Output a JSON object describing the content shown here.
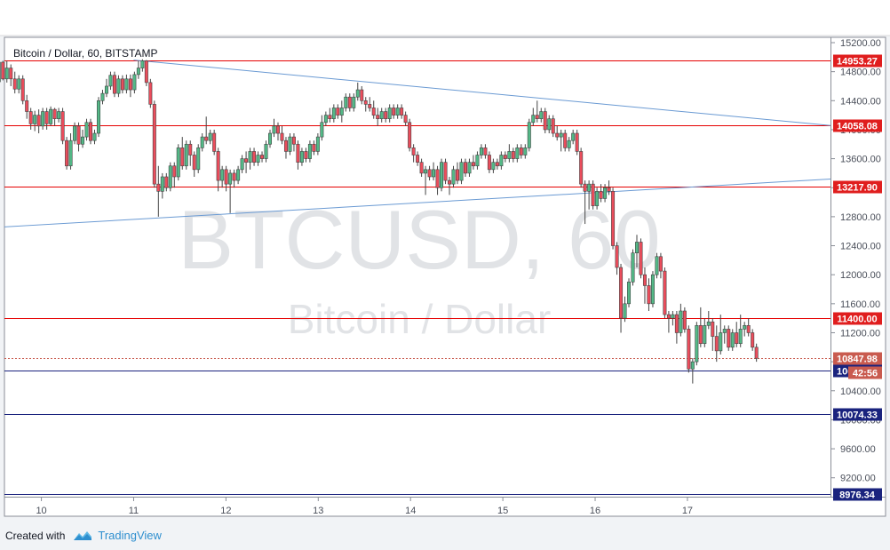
{
  "watermark": {
    "symbol": "BTCUSD, 60",
    "name": "Bitcoin / Dollar"
  },
  "footer": {
    "created_with": "Created with",
    "brand": "TradingView"
  },
  "colors": {
    "up": "#53b987",
    "down": "#eb4d5c",
    "wick": "#444444",
    "resistance": "#e60000",
    "support": "#1a237e",
    "trendline": "#6a9ad3",
    "last_price": "#c95b4f",
    "price_tag_bg": "#e01e1e"
  },
  "chart_data": {
    "type": "candlestick",
    "title": "Bitcoin / Dollar, 60, BITSTAMP",
    "ylim": [
      8976,
      15200
    ],
    "xlim": [
      9.6,
      18.55
    ],
    "y_ticks": [
      15200,
      14800,
      14400,
      14000,
      13600,
      13200,
      12800,
      12400,
      12000,
      11600,
      11200,
      10800,
      10400,
      10000,
      9600,
      9200
    ],
    "x_ticks": [
      "10",
      "11",
      "12",
      "13",
      "14",
      "15",
      "16",
      "17"
    ],
    "horizontal_levels": [
      {
        "value": 14953.27,
        "label": "14953.27",
        "kind": "resistance"
      },
      {
        "value": 14058.08,
        "label": "14058.08",
        "kind": "resistance"
      },
      {
        "value": 13217.9,
        "label": "13217.90",
        "kind": "resistance"
      },
      {
        "value": 11400.0,
        "label": "11400.00",
        "kind": "resistance"
      },
      {
        "value": 10680.67,
        "label": "10680.67",
        "kind": "support"
      },
      {
        "value": 10074.33,
        "label": "10074.33",
        "kind": "support"
      },
      {
        "value": 8976.34,
        "label": "8976.34",
        "kind": "support"
      }
    ],
    "last_price": {
      "value": 10847.98,
      "label": "10847.98",
      "countdown": "42:56"
    },
    "trendlines": [
      {
        "x1": 11.0,
        "y1": 14960,
        "x2": 18.55,
        "y2": 14058
      },
      {
        "x1": 9.6,
        "y1": 12660,
        "x2": 18.55,
        "y2": 13320
      }
    ],
    "candles": [
      [
        14660,
        14930,
        14650,
        14950
      ],
      [
        14930,
        14700,
        14680,
        14950
      ],
      [
        14700,
        14850,
        14650,
        14950
      ],
      [
        14850,
        14700,
        14600,
        14900
      ],
      [
        14700,
        14560,
        14500,
        14800
      ],
      [
        14560,
        14700,
        14500,
        14750
      ],
      [
        14700,
        14400,
        14350,
        14750
      ],
      [
        14400,
        14250,
        14150,
        14480
      ],
      [
        14250,
        14080,
        14000,
        14300
      ],
      [
        14080,
        14200,
        13980,
        14260
      ],
      [
        14200,
        14050,
        13950,
        14280
      ],
      [
        14050,
        14250,
        14000,
        14300
      ],
      [
        14250,
        14080,
        14000,
        14300
      ],
      [
        14080,
        14280,
        14050,
        14320
      ],
      [
        14280,
        14150,
        14050,
        14300
      ],
      [
        14150,
        14250,
        14100,
        14300
      ],
      [
        14250,
        13850,
        13800,
        14300
      ],
      [
        13850,
        13500,
        13450,
        13900
      ],
      [
        13500,
        13850,
        13450,
        13950
      ],
      [
        13850,
        14050,
        13800,
        14100
      ],
      [
        14050,
        13800,
        13700,
        14100
      ],
      [
        13800,
        13900,
        13750,
        14000
      ],
      [
        13900,
        14100,
        13850,
        14150
      ],
      [
        14100,
        13850,
        13800,
        14150
      ],
      [
        13850,
        13950,
        13800,
        14000
      ],
      [
        13950,
        14400,
        13900,
        14450
      ],
      [
        14400,
        14500,
        14350,
        14550
      ],
      [
        14500,
        14600,
        14450,
        14700
      ],
      [
        14600,
        14750,
        14550,
        14800
      ],
      [
        14750,
        14500,
        14450,
        14800
      ],
      [
        14500,
        14700,
        14450,
        14750
      ],
      [
        14700,
        14550,
        14500,
        14750
      ],
      [
        14550,
        14700,
        14500,
        14760
      ],
      [
        14700,
        14550,
        14450,
        14760
      ],
      [
        14550,
        14760,
        14500,
        14800
      ],
      [
        14760,
        14850,
        14700,
        14950
      ],
      [
        14850,
        14950,
        14800,
        14970
      ],
      [
        14950,
        14650,
        14600,
        14960
      ],
      [
        14650,
        14350,
        14300,
        14700
      ],
      [
        14350,
        13250,
        13200,
        14400
      ],
      [
        13250,
        13150,
        12800,
        13500
      ],
      [
        13150,
        13350,
        13050,
        13400
      ],
      [
        13350,
        13200,
        13150,
        13400
      ],
      [
        13200,
        13500,
        13150,
        13550
      ],
      [
        13500,
        13350,
        13200,
        13550
      ],
      [
        13350,
        13750,
        13300,
        13800
      ],
      [
        13750,
        13500,
        13450,
        13900
      ],
      [
        13500,
        13800,
        13450,
        13850
      ],
      [
        13800,
        13650,
        13500,
        13850
      ],
      [
        13650,
        13450,
        13350,
        13700
      ],
      [
        13450,
        13750,
        13400,
        13800
      ],
      [
        13750,
        13900,
        13700,
        13950
      ],
      [
        13900,
        13850,
        13800,
        14180
      ],
      [
        13850,
        13950,
        13800,
        14000
      ],
      [
        13950,
        13700,
        13650,
        14000
      ],
      [
        13700,
        13300,
        13150,
        13750
      ],
      [
        13300,
        13450,
        13200,
        13500
      ],
      [
        13450,
        13250,
        13150,
        13500
      ],
      [
        13250,
        13400,
        12850,
        13450
      ],
      [
        13400,
        13300,
        13200,
        13450
      ],
      [
        13300,
        13450,
        13250,
        13500
      ],
      [
        13450,
        13600,
        13400,
        13650
      ],
      [
        13600,
        13550,
        13400,
        13700
      ],
      [
        13550,
        13700,
        13450,
        13750
      ],
      [
        13700,
        13550,
        13500,
        13750
      ],
      [
        13550,
        13650,
        13500,
        13700
      ],
      [
        13650,
        13600,
        13550,
        13700
      ],
      [
        13600,
        13800,
        13550,
        13850
      ],
      [
        13800,
        13950,
        13750,
        14000
      ],
      [
        13950,
        14050,
        13900,
        14150
      ],
      [
        14050,
        13950,
        13850,
        14100
      ],
      [
        13950,
        13850,
        13800,
        14050
      ],
      [
        13850,
        13700,
        13600,
        13900
      ],
      [
        13700,
        13900,
        13650,
        13950
      ],
      [
        13900,
        13800,
        13700,
        13950
      ],
      [
        13800,
        13550,
        13450,
        13850
      ],
      [
        13550,
        13700,
        13500,
        13750
      ],
      [
        13700,
        13600,
        13550,
        13750
      ],
      [
        13600,
        13800,
        13550,
        13850
      ],
      [
        13800,
        13700,
        13650,
        13850
      ],
      [
        13700,
        13900,
        13650,
        13950
      ],
      [
        13900,
        14100,
        13850,
        14200
      ],
      [
        14100,
        14200,
        14050,
        14250
      ],
      [
        14200,
        14150,
        14100,
        14300
      ],
      [
        14150,
        14300,
        14100,
        14350
      ],
      [
        14300,
        14200,
        14150,
        14350
      ],
      [
        14200,
        14300,
        14100,
        14400
      ],
      [
        14300,
        14450,
        14250,
        14500
      ],
      [
        14450,
        14300,
        14250,
        14500
      ],
      [
        14300,
        14450,
        14250,
        14500
      ],
      [
        14450,
        14550,
        14400,
        14650
      ],
      [
        14550,
        14400,
        14350,
        14600
      ],
      [
        14400,
        14350,
        14250,
        14450
      ],
      [
        14350,
        14300,
        14250,
        14450
      ],
      [
        14300,
        14200,
        14150,
        14400
      ],
      [
        14200,
        14150,
        14050,
        14300
      ],
      [
        14150,
        14250,
        14100,
        14300
      ],
      [
        14250,
        14150,
        14100,
        14300
      ],
      [
        14150,
        14300,
        14100,
        14350
      ],
      [
        14300,
        14200,
        14150,
        14350
      ],
      [
        14200,
        14300,
        14150,
        14350
      ],
      [
        14300,
        14200,
        14150,
        14350
      ],
      [
        14200,
        14100,
        14050,
        14250
      ],
      [
        14100,
        13750,
        13700,
        14150
      ],
      [
        13750,
        13650,
        13550,
        13800
      ],
      [
        13650,
        13550,
        13500,
        13700
      ],
      [
        13550,
        13400,
        13350,
        13600
      ],
      [
        13400,
        13450,
        13100,
        13500
      ],
      [
        13450,
        13350,
        13300,
        13500
      ],
      [
        13350,
        13450,
        13300,
        13550
      ],
      [
        13450,
        13200,
        13100,
        13500
      ],
      [
        13200,
        13550,
        13150,
        13600
      ],
      [
        13550,
        13300,
        13250,
        13600
      ],
      [
        13300,
        13250,
        13100,
        13350
      ],
      [
        13250,
        13450,
        13200,
        13500
      ],
      [
        13450,
        13300,
        13250,
        13550
      ],
      [
        13300,
        13550,
        13250,
        13600
      ],
      [
        13550,
        13400,
        13350,
        13600
      ],
      [
        13400,
        13550,
        13350,
        13600
      ],
      [
        13550,
        13500,
        13450,
        13650
      ],
      [
        13500,
        13650,
        13450,
        13700
      ],
      [
        13650,
        13750,
        13600,
        13800
      ],
      [
        13750,
        13650,
        13600,
        13800
      ],
      [
        13650,
        13450,
        13400,
        13700
      ],
      [
        13450,
        13550,
        13400,
        13600
      ],
      [
        13550,
        13500,
        13450,
        13600
      ],
      [
        13500,
        13650,
        13450,
        13700
      ],
      [
        13650,
        13600,
        13550,
        13700
      ],
      [
        13600,
        13700,
        13550,
        13800
      ],
      [
        13700,
        13600,
        13550,
        13750
      ],
      [
        13600,
        13750,
        13550,
        13800
      ],
      [
        13750,
        13650,
        13600,
        13800
      ],
      [
        13650,
        13750,
        13600,
        13800
      ],
      [
        13750,
        14100,
        13700,
        14150
      ],
      [
        14100,
        14200,
        14050,
        14300
      ],
      [
        14200,
        14150,
        14100,
        14400
      ],
      [
        14150,
        14250,
        14100,
        14300
      ],
      [
        14250,
        14000,
        13950,
        14300
      ],
      [
        14000,
        14150,
        13950,
        14200
      ],
      [
        14150,
        13950,
        13900,
        14200
      ],
      [
        13950,
        13900,
        13850,
        14050
      ],
      [
        13900,
        13950,
        13700,
        14000
      ],
      [
        13950,
        13750,
        13700,
        14000
      ],
      [
        13750,
        13850,
        13700,
        13900
      ],
      [
        13850,
        13950,
        13800,
        14000
      ],
      [
        13950,
        13700,
        13650,
        14000
      ],
      [
        13700,
        13250,
        13200,
        13750
      ],
      [
        13250,
        13150,
        12700,
        13300
      ],
      [
        13150,
        13250,
        12900,
        13300
      ],
      [
        13250,
        12950,
        12900,
        13300
      ],
      [
        12950,
        13150,
        12900,
        13200
      ],
      [
        13150,
        13050,
        13000,
        13250
      ],
      [
        13050,
        13200,
        13000,
        13250
      ],
      [
        13200,
        13150,
        13100,
        13300
      ],
      [
        13150,
        12400,
        12350,
        13200
      ],
      [
        12400,
        12100,
        12000,
        12450
      ],
      [
        12100,
        11400,
        11200,
        12150
      ],
      [
        11400,
        11600,
        11350,
        11700
      ],
      [
        11600,
        11900,
        11550,
        11950
      ],
      [
        11900,
        12300,
        11850,
        12350
      ],
      [
        12300,
        12450,
        12100,
        12550
      ],
      [
        12450,
        12000,
        11950,
        12500
      ],
      [
        12000,
        11850,
        11600,
        12100
      ],
      [
        11850,
        11600,
        11500,
        11950
      ],
      [
        11600,
        12000,
        11550,
        12050
      ],
      [
        12000,
        12250,
        11950,
        12300
      ],
      [
        12250,
        12050,
        11950,
        12300
      ],
      [
        12050,
        11450,
        11400,
        12100
      ],
      [
        11450,
        11400,
        11200,
        11500
      ],
      [
        11400,
        11450,
        11300,
        11500
      ],
      [
        11450,
        11200,
        11050,
        11500
      ],
      [
        11200,
        11500,
        11150,
        11600
      ],
      [
        11500,
        11250,
        11200,
        11550
      ],
      [
        11250,
        10700,
        10650,
        11300
      ],
      [
        10700,
        10800,
        10500,
        10850
      ],
      [
        10800,
        11300,
        10750,
        11350
      ],
      [
        11300,
        11050,
        11000,
        11550
      ],
      [
        11050,
        11300,
        11000,
        11400
      ],
      [
        11300,
        11350,
        11250,
        11500
      ],
      [
        11350,
        11150,
        10950,
        11400
      ],
      [
        11150,
        10950,
        10800,
        11300
      ],
      [
        10950,
        11200,
        10900,
        11450
      ],
      [
        11200,
        11250,
        11050,
        11300
      ],
      [
        11250,
        11000,
        10950,
        11300
      ],
      [
        11000,
        11200,
        10950,
        11250
      ],
      [
        11200,
        11050,
        11000,
        11350
      ],
      [
        11050,
        11250,
        11000,
        11450
      ],
      [
        11250,
        11300,
        11150,
        11350
      ],
      [
        11300,
        11200,
        11150,
        11400
      ],
      [
        11200,
        11000,
        10950,
        11250
      ],
      [
        11000,
        10848,
        10800,
        11050
      ]
    ],
    "candle_start_x": 9.54,
    "candle_step": 0.0432
  }
}
